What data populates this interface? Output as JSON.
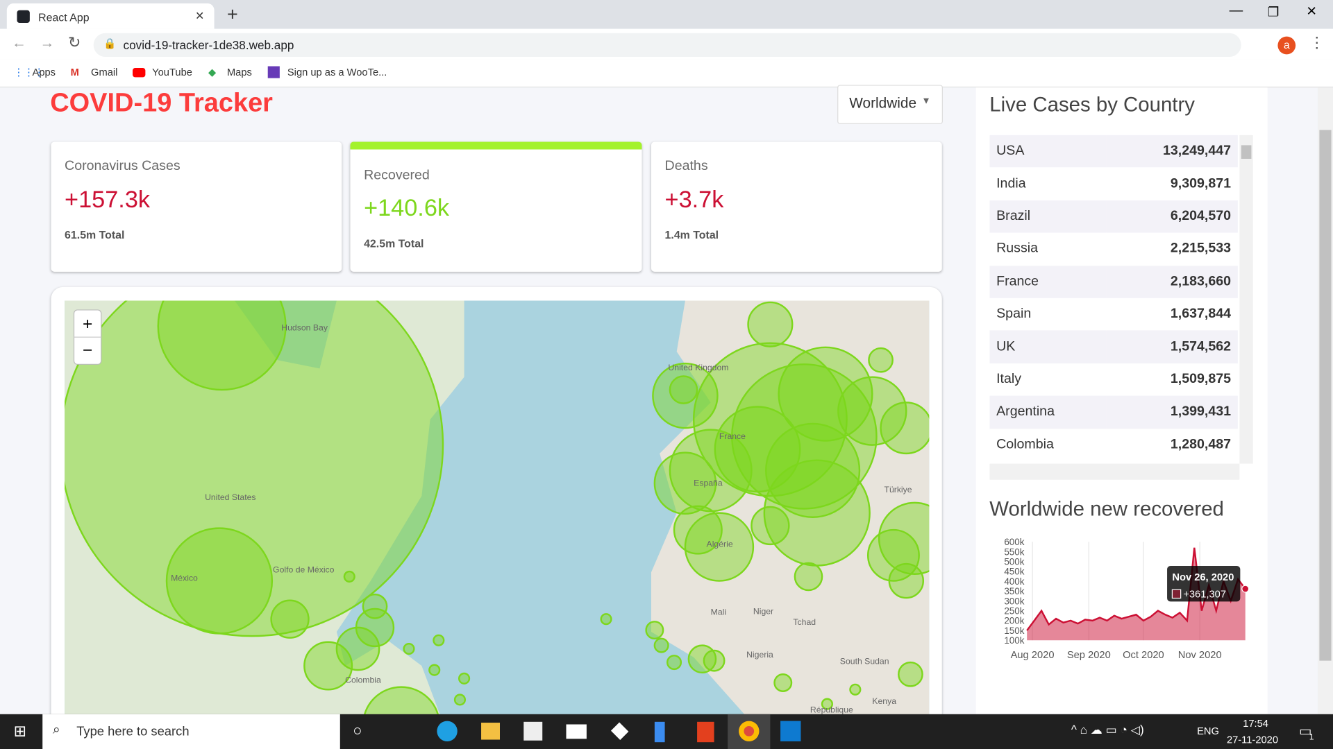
{
  "browser": {
    "tab_title": "React App",
    "url": "covid-19-tracker-1de38.web.app",
    "bookmarks": [
      "Apps",
      "Gmail",
      "YouTube",
      "Maps",
      "Sign up as a WooTe..."
    ],
    "profile": "a"
  },
  "app": {
    "title": "COVID-19 Tracker",
    "dropdown": "Worldwide",
    "cards": [
      {
        "title": "Coronavirus Cases",
        "cases": "+157.3k",
        "total": "61.5m Total"
      },
      {
        "title": "Recovered",
        "cases": "+140.6k",
        "total": "42.5m Total"
      },
      {
        "title": "Deaths",
        "cases": "+3.7k",
        "total": "1.4m Total"
      }
    ],
    "map_labels": [
      "United Kingdom",
      "France",
      "España",
      "Algérie",
      "Mali",
      "Niger",
      "Tchad",
      "Nigeria",
      "South Sudan",
      "Türkiye",
      "Kenya",
      "République",
      "United States",
      "México",
      "Golfo de México",
      "Colombia",
      "Hudson Bay"
    ],
    "table_title": "Live Cases by Country",
    "table": {
      "rows": [
        [
          "USA",
          "13,249,447"
        ],
        [
          "India",
          "9,309,871"
        ],
        [
          "Brazil",
          "6,204,570"
        ],
        [
          "Russia",
          "2,215,533"
        ],
        [
          "France",
          "2,183,660"
        ],
        [
          "Spain",
          "1,637,844"
        ],
        [
          "UK",
          "1,574,562"
        ],
        [
          "Italy",
          "1,509,875"
        ],
        [
          "Argentina",
          "1,399,431"
        ],
        [
          "Colombia",
          "1,280,487"
        ]
      ]
    },
    "chart_title": "Worldwide new recovered",
    "tooltip": {
      "date": "Nov 26, 2020",
      "value": "+361,307"
    }
  },
  "chart_data": {
    "type": "line",
    "x": [
      "2020-07-29",
      "2020-08-02",
      "2020-08-06",
      "2020-08-10",
      "2020-08-14",
      "2020-08-18",
      "2020-08-22",
      "2020-08-26",
      "2020-08-30",
      "2020-09-03",
      "2020-09-07",
      "2020-09-11",
      "2020-09-15",
      "2020-09-19",
      "2020-09-23",
      "2020-09-27",
      "2020-10-01",
      "2020-10-05",
      "2020-10-09",
      "2020-10-13",
      "2020-10-17",
      "2020-10-21",
      "2020-10-25",
      "2020-10-29",
      "2020-11-02",
      "2020-11-06",
      "2020-11-10",
      "2020-11-14",
      "2020-11-18",
      "2020-11-22",
      "2020-11-26"
    ],
    "values": [
      150000,
      200000,
      250000,
      180000,
      210000,
      190000,
      200000,
      185000,
      205000,
      200000,
      215000,
      200000,
      225000,
      210000,
      220000,
      230000,
      200000,
      220000,
      250000,
      230000,
      215000,
      240000,
      200000,
      570000,
      250000,
      380000,
      250000,
      400000,
      300000,
      410000,
      361307
    ],
    "color": "#cc1034",
    "fill": "rgba(204,16,52,0.5)",
    "xlim": [
      "2020-07-29",
      "2020-11-27"
    ],
    "xticks": [
      {
        "value": "2020-08-01",
        "label": "Aug 2020"
      },
      {
        "value": "2020-09-01",
        "label": "Sep 2020"
      },
      {
        "value": "2020-10-01",
        "label": "Oct 2020"
      },
      {
        "value": "2020-11-01",
        "label": "Nov 2020"
      }
    ],
    "ylim": [
      100000,
      600000
    ],
    "yticks": [
      {
        "value": 100000,
        "label": "100k"
      },
      {
        "value": 150000,
        "label": "150k"
      },
      {
        "value": 200000,
        "label": "200k"
      },
      {
        "value": 250000,
        "label": "250k"
      },
      {
        "value": 300000,
        "label": "300k"
      },
      {
        "value": 350000,
        "label": "350k"
      },
      {
        "value": 400000,
        "label": "400k"
      },
      {
        "value": 450000,
        "label": "450k"
      },
      {
        "value": 500000,
        "label": "500k"
      },
      {
        "value": 550000,
        "label": "550k"
      },
      {
        "value": 600000,
        "label": "600k"
      }
    ],
    "grid": true
  },
  "taskbar": {
    "search": "Type here to search",
    "lang": "ENG",
    "time": "17:54",
    "date": "27-11-2020",
    "notifications": "1"
  }
}
